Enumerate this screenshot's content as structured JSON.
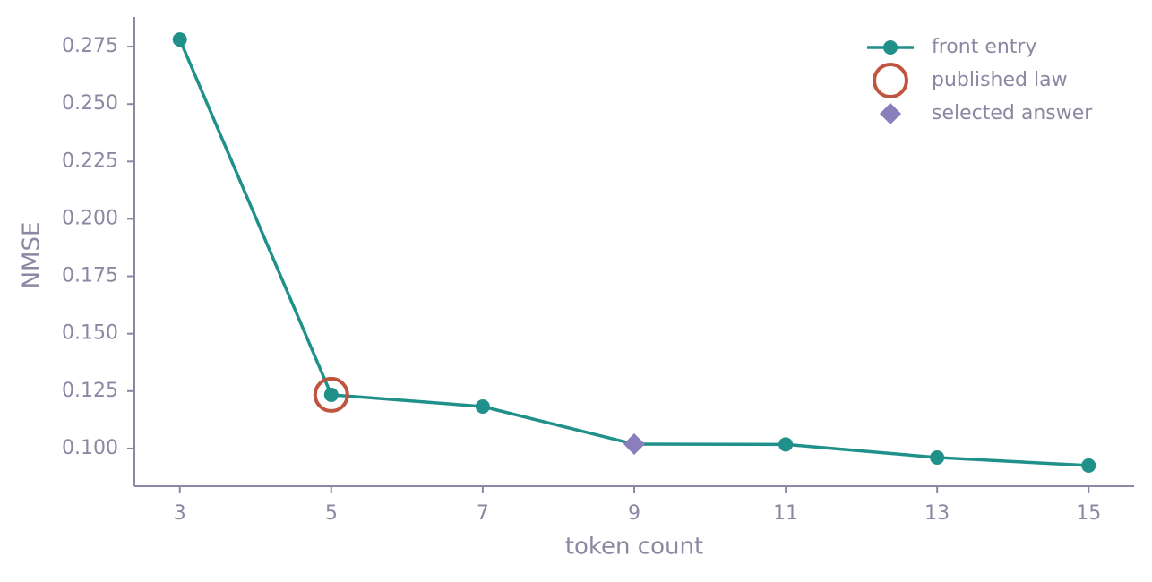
{
  "chart_data": {
    "type": "line",
    "xlabel": "token count",
    "ylabel": "NMSE",
    "xlim": [
      2.4,
      15.6
    ],
    "xticks": [
      3,
      5,
      7,
      9,
      11,
      13,
      15
    ],
    "ylim": [
      0.0836,
      0.2875
    ],
    "yticks": [
      {
        "value": 0.1,
        "label": "0.100"
      },
      0.125,
      {
        "value": 0.15,
        "label": "0.150"
      },
      0.175,
      {
        "value": 0.2,
        "label": "0.200"
      },
      0.225,
      {
        "value": 0.25,
        "label": "0.250"
      },
      0.275
    ],
    "legend": "upper right",
    "series": [
      {
        "name": "front entry",
        "color": "#20908a",
        "marker": "circle",
        "line": true,
        "x": [
          3,
          5,
          7,
          9,
          11,
          13,
          15
        ],
        "values": [
          0.2781,
          0.1234,
          0.1183,
          0.1019,
          0.1018,
          0.0961,
          0.0926
        ]
      },
      {
        "name": "published law",
        "color": "#c0553f",
        "marker": "ring",
        "line": false,
        "x": [
          5
        ],
        "values": [
          0.1234
        ]
      },
      {
        "name": "selected answer",
        "color": "#8a7fba",
        "marker": "diamond",
        "line": false,
        "x": [
          9
        ],
        "values": [
          0.1019
        ]
      }
    ]
  }
}
